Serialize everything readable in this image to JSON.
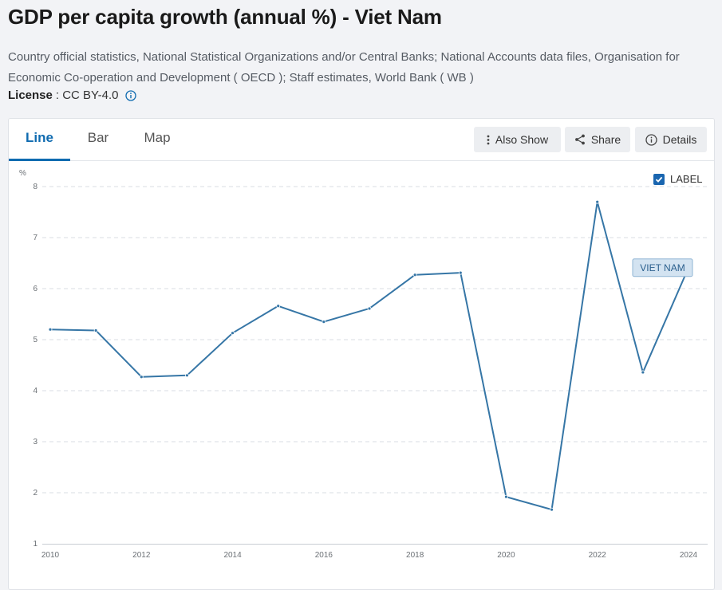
{
  "header": {
    "title": "GDP per capita growth (annual %) - Viet Nam",
    "source_line_1": "Country official statistics, National Statistical Organizations and/or Central Banks; National Accounts data files, Organisation for",
    "source_line_2": "Economic Co-operation and Development ( OECD ); Staff estimates, World Bank ( WB )",
    "license_label": "License",
    "license_value": ": CC BY-4.0"
  },
  "tabs": [
    {
      "label": "Line",
      "active": true
    },
    {
      "label": "Bar",
      "active": false
    },
    {
      "label": "Map",
      "active": false
    }
  ],
  "toolbar": {
    "also_show": "Also Show",
    "share": "Share",
    "details": "Details"
  },
  "label_toggle": {
    "text": "LABEL",
    "checked": true
  },
  "colors": {
    "accent": "#0f6bb0",
    "series_line": "#3676a6",
    "grid": "#d9dde3",
    "axis_text": "#6b7075"
  },
  "chart_data": {
    "type": "line",
    "title": "",
    "xlabel": "",
    "ylabel": "%",
    "xlim": [
      2010,
      2024
    ],
    "ylim": [
      1,
      8
    ],
    "x_ticks": [
      2010,
      2012,
      2014,
      2016,
      2018,
      2020,
      2022,
      2024
    ],
    "y_ticks": [
      1,
      2,
      3,
      4,
      5,
      6,
      7,
      8
    ],
    "grid": true,
    "series": [
      {
        "name": "VIET NAM",
        "x": [
          2010,
          2011,
          2012,
          2013,
          2014,
          2015,
          2016,
          2017,
          2018,
          2019,
          2020,
          2021,
          2022,
          2023,
          2024
        ],
        "values": [
          5.2,
          5.18,
          4.27,
          4.3,
          5.13,
          5.66,
          5.35,
          5.61,
          6.27,
          6.31,
          1.92,
          1.67,
          7.7,
          4.36,
          6.41
        ]
      }
    ]
  }
}
